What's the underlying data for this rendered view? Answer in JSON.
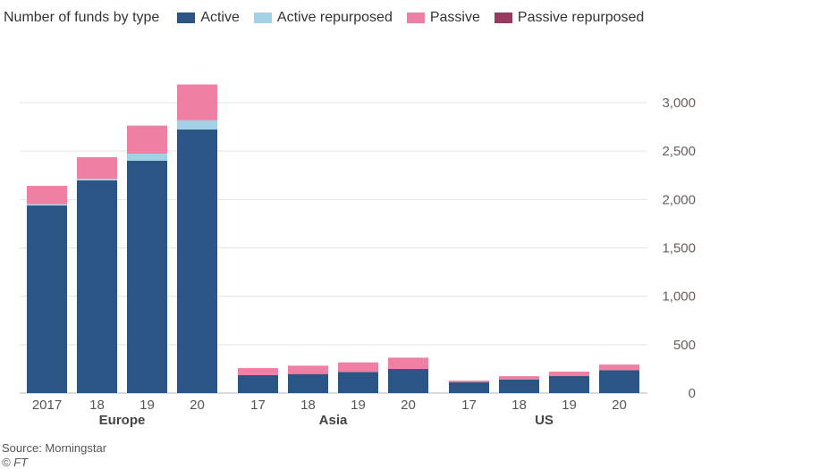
{
  "chart_data": {
    "type": "bar",
    "stacked": true,
    "title": "Number of funds by type",
    "groups": [
      {
        "name": "Europe",
        "categories": [
          "2017",
          "18",
          "19",
          "20"
        ]
      },
      {
        "name": "Asia",
        "categories": [
          "17",
          "18",
          "19",
          "20"
        ]
      },
      {
        "name": "US",
        "categories": [
          "17",
          "18",
          "19",
          "20"
        ]
      }
    ],
    "series": [
      {
        "name": "Active",
        "color": "#2b5585",
        "values": [
          1938,
          2197,
          2400,
          2723,
          185,
          197,
          218,
          249,
          111,
          141,
          178,
          237
        ]
      },
      {
        "name": "Active repurposed",
        "color": "#a3d2e6",
        "values": [
          15,
          18,
          74,
          97,
          0,
          0,
          0,
          0,
          0,
          0,
          0,
          0
        ]
      },
      {
        "name": "Passive",
        "color": "#ef80a4",
        "values": [
          188,
          222,
          290,
          369,
          73,
          86,
          99,
          117,
          18,
          34,
          44,
          58
        ]
      },
      {
        "name": "Passive repurposed",
        "color": "#9b3a60",
        "values": [
          0,
          0,
          0,
          0,
          0,
          0,
          0,
          0,
          0,
          0,
          0,
          0
        ]
      }
    ],
    "ylim": [
      0,
      3000
    ],
    "yticks": [
      0,
      500,
      1000,
      1500,
      2000,
      2500,
      3000
    ],
    "ytick_labels": [
      "0",
      "500",
      "1,000",
      "1,500",
      "2,000",
      "2,500",
      "3,000"
    ],
    "y_axis_side": "right",
    "grid": true,
    "legend_placement": "top"
  },
  "source": "Source: Morningstar",
  "copyright": "© FT"
}
